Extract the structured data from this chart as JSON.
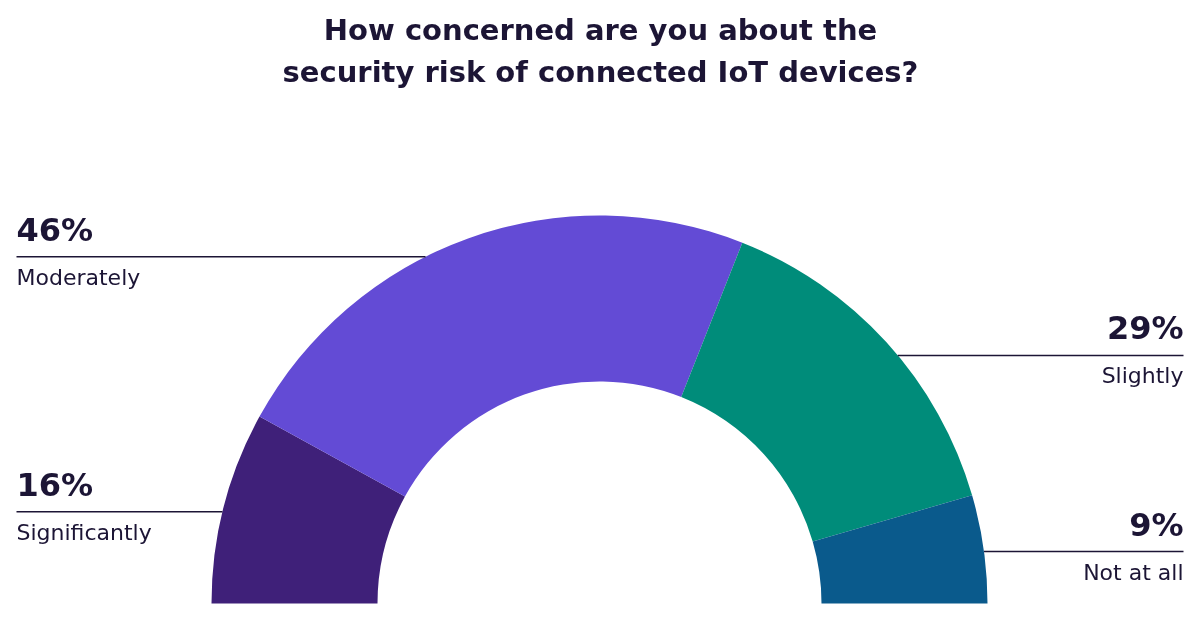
{
  "chart_data": {
    "type": "donut",
    "title": "How concerned are you about the\nsecurity risk of connected IoT devices?",
    "categories": [
      "Significantly",
      "Moderately",
      "Slightly",
      "Not at all"
    ],
    "values": [
      16,
      46,
      29,
      9
    ],
    "value_labels": [
      "16%",
      "46%",
      "29%",
      "9%"
    ],
    "colors": [
      "#3f2079",
      "#634bd5",
      "#008c7a",
      "#0a5a8c"
    ]
  }
}
